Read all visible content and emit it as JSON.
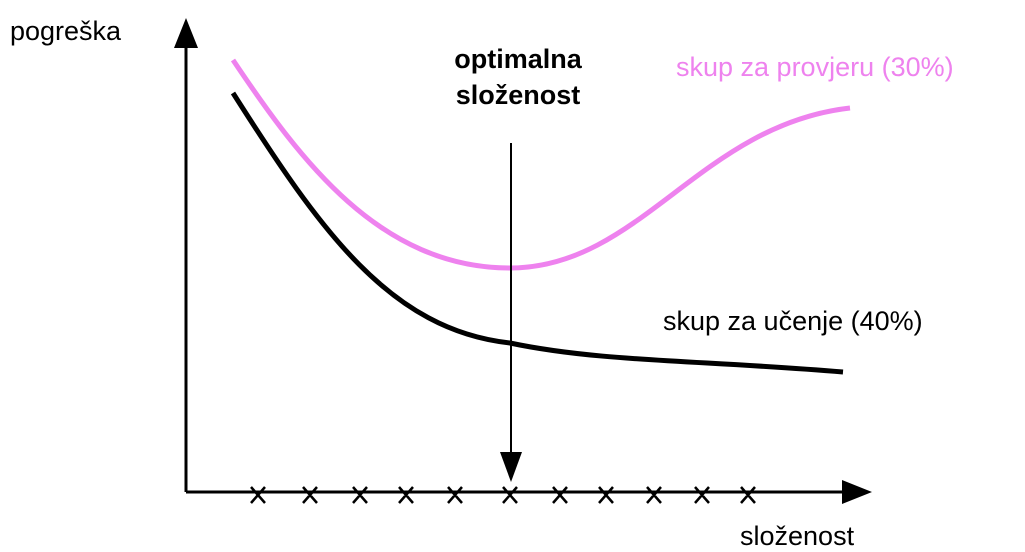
{
  "axes": {
    "y_label": "pogreška",
    "x_label": "složenost"
  },
  "annotation": {
    "line1": "optimalna",
    "line2": "složenost"
  },
  "curves": {
    "validation_label": "skup za provjeru (30%)",
    "training_label": "skup za učenje (40%)"
  }
}
